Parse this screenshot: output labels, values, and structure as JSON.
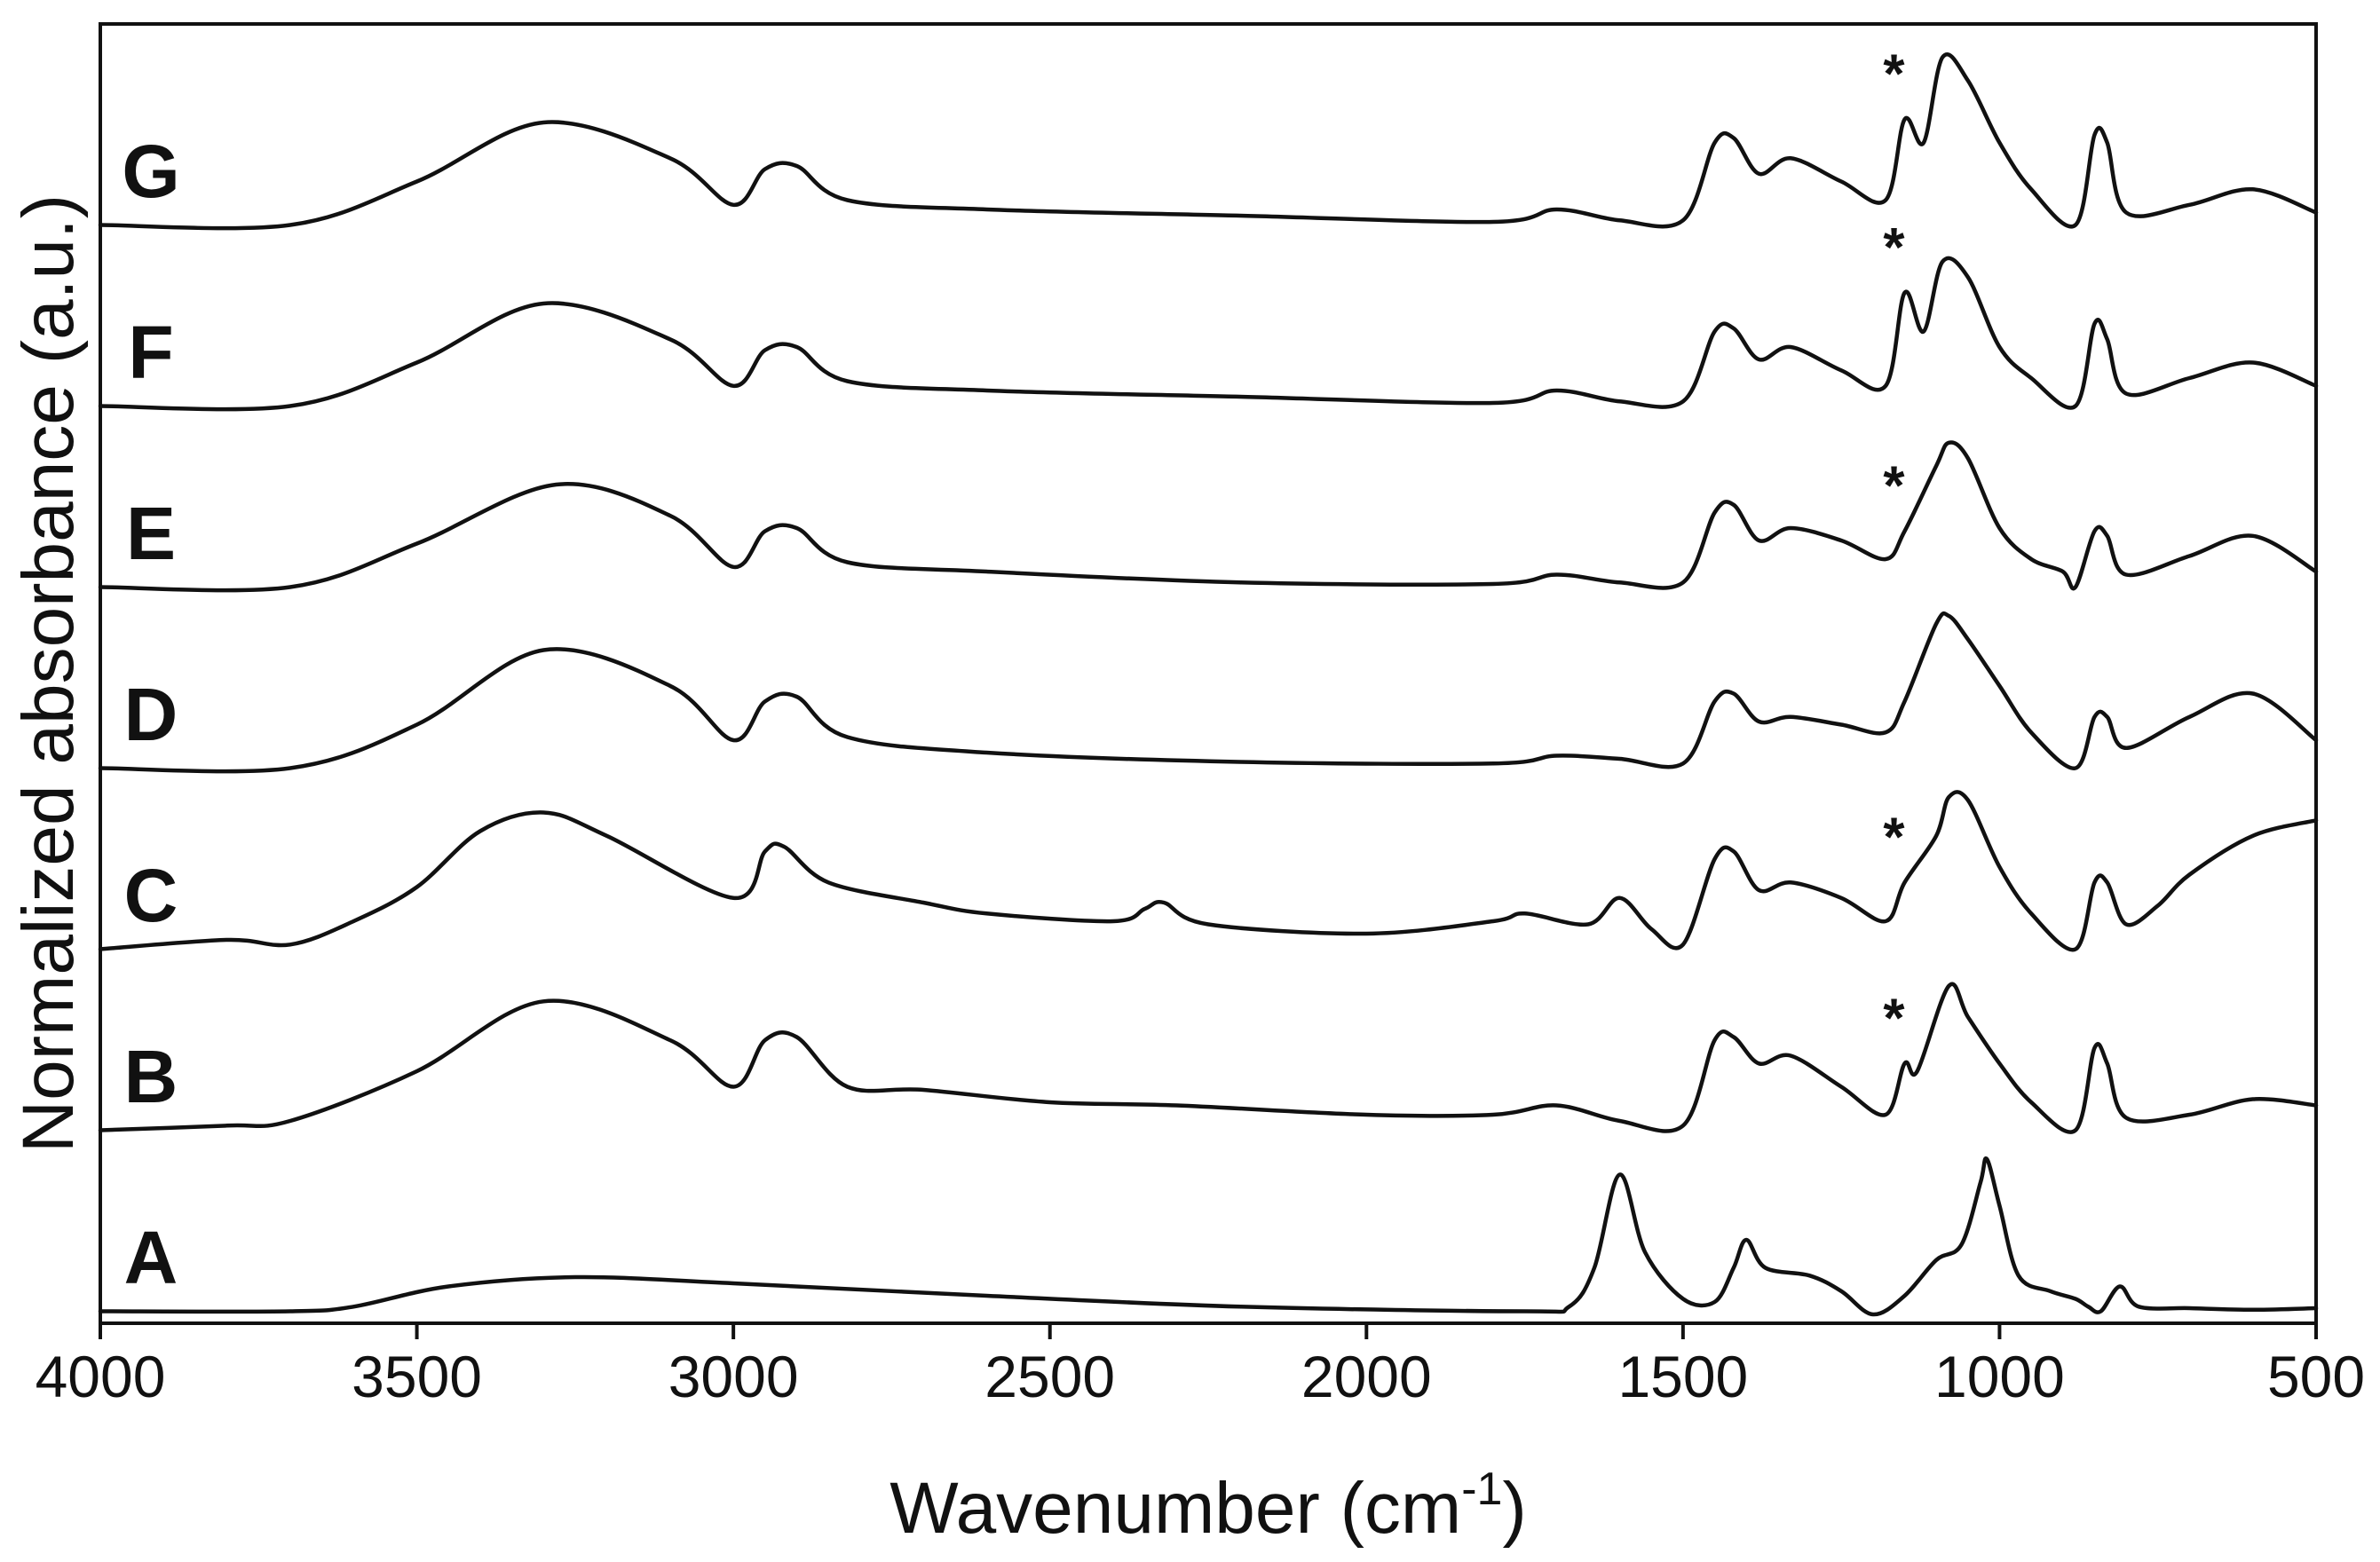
{
  "chart_data": {
    "type": "line",
    "title": "",
    "xlabel": "Wavenumber (cm",
    "xlabel_sup": "-1",
    "xlabel_end": ")",
    "ylabel": "Normalized absorbance (a.u.)",
    "xlim": [
      4000,
      500
    ],
    "x_reversed": true,
    "yticks_shown": false,
    "xticks": [
      "4000",
      "3500",
      "3000",
      "2500",
      "2000",
      "1500",
      "1000",
      "500"
    ],
    "marker_symbol": "*",
    "marker_note_wavenumber": 1150,
    "series": [
      {
        "name": "A",
        "offset": 0.0,
        "markers": [],
        "points": [
          [
            4000,
            0.02
          ],
          [
            3700,
            0.02
          ],
          [
            3600,
            0.05
          ],
          [
            3450,
            0.18
          ],
          [
            3250,
            0.24
          ],
          [
            3000,
            0.2
          ],
          [
            2600,
            0.12
          ],
          [
            2200,
            0.05
          ],
          [
            1750,
            0.02
          ],
          [
            1680,
            0.05
          ],
          [
            1640,
            0.3
          ],
          [
            1600,
            0.9
          ],
          [
            1560,
            0.4
          ],
          [
            1500,
            0.1
          ],
          [
            1450,
            0.08
          ],
          [
            1420,
            0.3
          ],
          [
            1400,
            0.48
          ],
          [
            1370,
            0.3
          ],
          [
            1300,
            0.25
          ],
          [
            1250,
            0.15
          ],
          [
            1200,
            0.0
          ],
          [
            1150,
            0.12
          ],
          [
            1100,
            0.35
          ],
          [
            1060,
            0.45
          ],
          [
            1030,
            0.85
          ],
          [
            1020,
            1.0
          ],
          [
            1000,
            0.7
          ],
          [
            970,
            0.25
          ],
          [
            920,
            0.15
          ],
          [
            880,
            0.1
          ],
          [
            860,
            0.05
          ],
          [
            840,
            0.02
          ],
          [
            810,
            0.18
          ],
          [
            780,
            0.05
          ],
          [
            700,
            0.04
          ],
          [
            600,
            0.03
          ],
          [
            500,
            0.04
          ]
        ]
      },
      {
        "name": "B",
        "offset": 1.0,
        "markers": [
          1150
        ],
        "points": [
          [
            4000,
            0.02
          ],
          [
            3800,
            0.05
          ],
          [
            3700,
            0.08
          ],
          [
            3500,
            0.4
          ],
          [
            3300,
            0.85
          ],
          [
            3100,
            0.6
          ],
          [
            3000,
            0.3
          ],
          [
            2950,
            0.6
          ],
          [
            2900,
            0.62
          ],
          [
            2820,
            0.3
          ],
          [
            2700,
            0.28
          ],
          [
            2500,
            0.2
          ],
          [
            2300,
            0.18
          ],
          [
            2000,
            0.12
          ],
          [
            1800,
            0.12
          ],
          [
            1700,
            0.18
          ],
          [
            1600,
            0.08
          ],
          [
            1500,
            0.05
          ],
          [
            1450,
            0.6
          ],
          [
            1420,
            0.62
          ],
          [
            1380,
            0.45
          ],
          [
            1330,
            0.5
          ],
          [
            1250,
            0.3
          ],
          [
            1180,
            0.12
          ],
          [
            1150,
            0.45
          ],
          [
            1130,
            0.4
          ],
          [
            1080,
            0.95
          ],
          [
            1050,
            0.75
          ],
          [
            1000,
            0.45
          ],
          [
            950,
            0.2
          ],
          [
            880,
            0.02
          ],
          [
            850,
            0.55
          ],
          [
            830,
            0.45
          ],
          [
            800,
            0.1
          ],
          [
            700,
            0.12
          ],
          [
            600,
            0.22
          ],
          [
            500,
            0.18
          ]
        ]
      },
      {
        "name": "C",
        "offset": 2.0,
        "markers": [
          1150
        ],
        "points": [
          [
            4000,
            0.02
          ],
          [
            3800,
            0.08
          ],
          [
            3700,
            0.05
          ],
          [
            3600,
            0.2
          ],
          [
            3500,
            0.42
          ],
          [
            3400,
            0.78
          ],
          [
            3300,
            0.9
          ],
          [
            3200,
            0.75
          ],
          [
            3000,
            0.35
          ],
          [
            2950,
            0.65
          ],
          [
            2920,
            0.68
          ],
          [
            2850,
            0.45
          ],
          [
            2700,
            0.32
          ],
          [
            2600,
            0.25
          ],
          [
            2400,
            0.2
          ],
          [
            2350,
            0.28
          ],
          [
            2320,
            0.32
          ],
          [
            2250,
            0.18
          ],
          [
            2000,
            0.12
          ],
          [
            1800,
            0.2
          ],
          [
            1750,
            0.25
          ],
          [
            1650,
            0.18
          ],
          [
            1600,
            0.35
          ],
          [
            1550,
            0.15
          ],
          [
            1500,
            0.05
          ],
          [
            1450,
            0.6
          ],
          [
            1420,
            0.65
          ],
          [
            1380,
            0.4
          ],
          [
            1330,
            0.45
          ],
          [
            1250,
            0.35
          ],
          [
            1180,
            0.2
          ],
          [
            1150,
            0.45
          ],
          [
            1100,
            0.75
          ],
          [
            1080,
            1.0
          ],
          [
            1050,
            0.98
          ],
          [
            1000,
            0.55
          ],
          [
            950,
            0.25
          ],
          [
            880,
            0.02
          ],
          [
            850,
            0.45
          ],
          [
            830,
            0.45
          ],
          [
            800,
            0.18
          ],
          [
            750,
            0.3
          ],
          [
            700,
            0.5
          ],
          [
            600,
            0.75
          ],
          [
            500,
            0.85
          ]
        ]
      },
      {
        "name": "D",
        "offset": 3.0,
        "markers": [],
        "points": [
          [
            4000,
            0.02
          ],
          [
            3700,
            0.02
          ],
          [
            3500,
            0.3
          ],
          [
            3300,
            0.78
          ],
          [
            3100,
            0.55
          ],
          [
            3000,
            0.2
          ],
          [
            2950,
            0.45
          ],
          [
            2900,
            0.48
          ],
          [
            2820,
            0.22
          ],
          [
            2600,
            0.12
          ],
          [
            2200,
            0.06
          ],
          [
            1800,
            0.05
          ],
          [
            1700,
            0.1
          ],
          [
            1600,
            0.08
          ],
          [
            1500,
            0.05
          ],
          [
            1450,
            0.45
          ],
          [
            1420,
            0.5
          ],
          [
            1380,
            0.32
          ],
          [
            1330,
            0.35
          ],
          [
            1250,
            0.3
          ],
          [
            1180,
            0.25
          ],
          [
            1150,
            0.45
          ],
          [
            1100,
            0.95
          ],
          [
            1080,
            1.0
          ],
          [
            1050,
            0.85
          ],
          [
            1000,
            0.55
          ],
          [
            950,
            0.25
          ],
          [
            880,
            0.02
          ],
          [
            850,
            0.35
          ],
          [
            830,
            0.35
          ],
          [
            800,
            0.15
          ],
          [
            700,
            0.35
          ],
          [
            600,
            0.5
          ],
          [
            500,
            0.2
          ]
        ]
      },
      {
        "name": "E",
        "offset": 4.0,
        "markers": [
          1150
        ],
        "points": [
          [
            4000,
            0.02
          ],
          [
            3700,
            0.02
          ],
          [
            3500,
            0.3
          ],
          [
            3280,
            0.68
          ],
          [
            3100,
            0.48
          ],
          [
            3000,
            0.15
          ],
          [
            2950,
            0.38
          ],
          [
            2900,
            0.4
          ],
          [
            2820,
            0.18
          ],
          [
            2600,
            0.12
          ],
          [
            2200,
            0.05
          ],
          [
            1800,
            0.04
          ],
          [
            1700,
            0.1
          ],
          [
            1600,
            0.05
          ],
          [
            1500,
            0.05
          ],
          [
            1450,
            0.5
          ],
          [
            1420,
            0.55
          ],
          [
            1380,
            0.32
          ],
          [
            1330,
            0.4
          ],
          [
            1250,
            0.32
          ],
          [
            1180,
            0.2
          ],
          [
            1150,
            0.38
          ],
          [
            1100,
            0.8
          ],
          [
            1080,
            0.95
          ],
          [
            1050,
            0.85
          ],
          [
            1000,
            0.4
          ],
          [
            950,
            0.2
          ],
          [
            900,
            0.12
          ],
          [
            880,
            0.02
          ],
          [
            850,
            0.38
          ],
          [
            830,
            0.35
          ],
          [
            800,
            0.1
          ],
          [
            700,
            0.22
          ],
          [
            600,
            0.35
          ],
          [
            500,
            0.12
          ]
        ]
      },
      {
        "name": "F",
        "offset": 5.0,
        "markers": [
          1150
        ],
        "points": [
          [
            4000,
            0.02
          ],
          [
            3700,
            0.02
          ],
          [
            3500,
            0.3
          ],
          [
            3300,
            0.68
          ],
          [
            3100,
            0.45
          ],
          [
            3000,
            0.15
          ],
          [
            2950,
            0.38
          ],
          [
            2900,
            0.4
          ],
          [
            2820,
            0.18
          ],
          [
            2600,
            0.12
          ],
          [
            2200,
            0.08
          ],
          [
            1800,
            0.04
          ],
          [
            1700,
            0.12
          ],
          [
            1600,
            0.05
          ],
          [
            1500,
            0.05
          ],
          [
            1450,
            0.5
          ],
          [
            1420,
            0.52
          ],
          [
            1380,
            0.32
          ],
          [
            1330,
            0.4
          ],
          [
            1250,
            0.25
          ],
          [
            1180,
            0.15
          ],
          [
            1150,
            0.75
          ],
          [
            1120,
            0.5
          ],
          [
            1090,
            0.95
          ],
          [
            1050,
            0.85
          ],
          [
            1000,
            0.4
          ],
          [
            950,
            0.2
          ],
          [
            880,
            0.02
          ],
          [
            850,
            0.55
          ],
          [
            830,
            0.45
          ],
          [
            800,
            0.1
          ],
          [
            700,
            0.2
          ],
          [
            600,
            0.3
          ],
          [
            500,
            0.15
          ]
        ]
      },
      {
        "name": "G",
        "offset": 6.0,
        "markers": [
          1150
        ],
        "points": [
          [
            4000,
            0.02
          ],
          [
            3700,
            0.02
          ],
          [
            3500,
            0.3
          ],
          [
            3300,
            0.68
          ],
          [
            3100,
            0.45
          ],
          [
            3000,
            0.15
          ],
          [
            2950,
            0.38
          ],
          [
            2900,
            0.4
          ],
          [
            2820,
            0.18
          ],
          [
            2600,
            0.12
          ],
          [
            2200,
            0.08
          ],
          [
            1800,
            0.04
          ],
          [
            1700,
            0.12
          ],
          [
            1600,
            0.05
          ],
          [
            1500,
            0.05
          ],
          [
            1450,
            0.55
          ],
          [
            1420,
            0.58
          ],
          [
            1380,
            0.35
          ],
          [
            1330,
            0.45
          ],
          [
            1250,
            0.3
          ],
          [
            1180,
            0.18
          ],
          [
            1150,
            0.7
          ],
          [
            1120,
            0.55
          ],
          [
            1090,
            1.1
          ],
          [
            1050,
            0.95
          ],
          [
            1000,
            0.55
          ],
          [
            950,
            0.25
          ],
          [
            880,
            0.02
          ],
          [
            850,
            0.6
          ],
          [
            830,
            0.55
          ],
          [
            800,
            0.1
          ],
          [
            700,
            0.15
          ],
          [
            600,
            0.25
          ],
          [
            500,
            0.1
          ]
        ]
      }
    ]
  }
}
